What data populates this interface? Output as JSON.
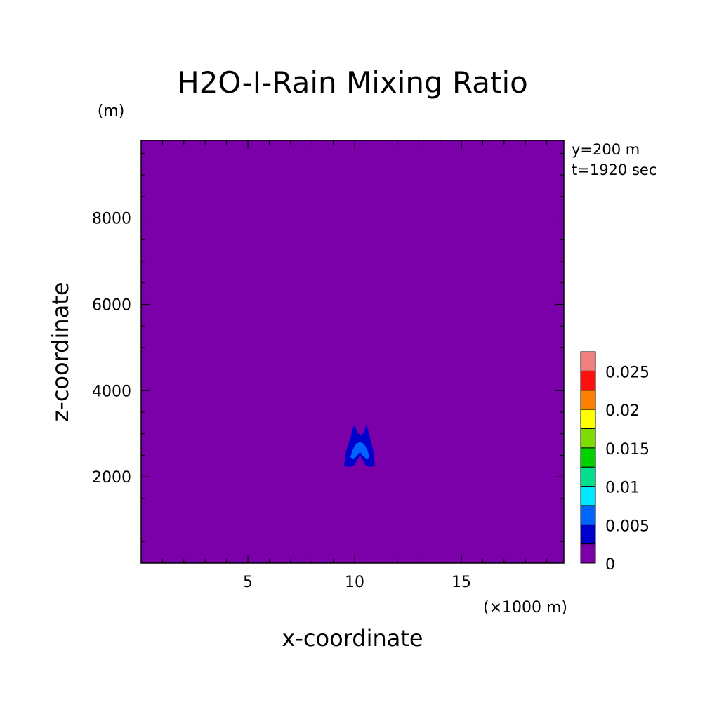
{
  "chart_data": {
    "type": "heatmap",
    "title": "H2O-I-Rain Mixing Ratio",
    "xlabel": "x-coordinate",
    "ylabel": "z-coordinate",
    "x_unit": "(×1000 m)",
    "y_unit": "(m)",
    "info": [
      "y=200 m",
      "t=1920 sec"
    ],
    "xlim": [
      0,
      19.8
    ],
    "ylim": [
      0,
      9800
    ],
    "x_ticks": [
      5,
      10,
      15
    ],
    "y_ticks": [
      2000,
      4000,
      6000,
      8000
    ],
    "x_minor_step": 1,
    "y_minor_step": 500,
    "background_level": 0,
    "contours": [
      {
        "level": 0.0025,
        "color": "#0000cc",
        "points": [
          [
            9.5,
            2250
          ],
          [
            9.6,
            2600
          ],
          [
            9.8,
            2900
          ],
          [
            9.9,
            3100
          ],
          [
            10.0,
            3230
          ],
          [
            10.1,
            3050
          ],
          [
            10.3,
            2950
          ],
          [
            10.45,
            3050
          ],
          [
            10.55,
            3230
          ],
          [
            10.65,
            3050
          ],
          [
            10.75,
            2850
          ],
          [
            10.9,
            2550
          ],
          [
            10.95,
            2250
          ],
          [
            10.7,
            2230
          ],
          [
            10.5,
            2280
          ],
          [
            10.25,
            2500
          ],
          [
            10.0,
            2280
          ],
          [
            9.8,
            2230
          ]
        ]
      },
      {
        "level": 0.005,
        "color": "#0064ff",
        "points": [
          [
            9.8,
            2450
          ],
          [
            9.9,
            2620
          ],
          [
            10.05,
            2760
          ],
          [
            10.25,
            2810
          ],
          [
            10.45,
            2760
          ],
          [
            10.6,
            2620
          ],
          [
            10.7,
            2450
          ],
          [
            10.55,
            2420
          ],
          [
            10.4,
            2480
          ],
          [
            10.25,
            2580
          ],
          [
            10.1,
            2480
          ],
          [
            9.95,
            2420
          ]
        ]
      }
    ],
    "colorbar": {
      "levels": [
        0,
        0.0025,
        0.005,
        0.0075,
        0.01,
        0.0125,
        0.015,
        0.0175,
        0.02,
        0.0225,
        0.025,
        0.0275
      ],
      "colors": [
        "#7b00a9",
        "#0000cc",
        "#0064ff",
        "#00e8ff",
        "#00e08c",
        "#00d200",
        "#7fdc00",
        "#ffff00",
        "#ff8000",
        "#ff1010",
        "#f08080"
      ],
      "tick_values": [
        0,
        0.005,
        0.01,
        0.015,
        0.02,
        0.025
      ],
      "tick_labels": [
        "0",
        "0.005",
        "0.01",
        "0.015",
        "0.02",
        "0.025"
      ]
    }
  }
}
